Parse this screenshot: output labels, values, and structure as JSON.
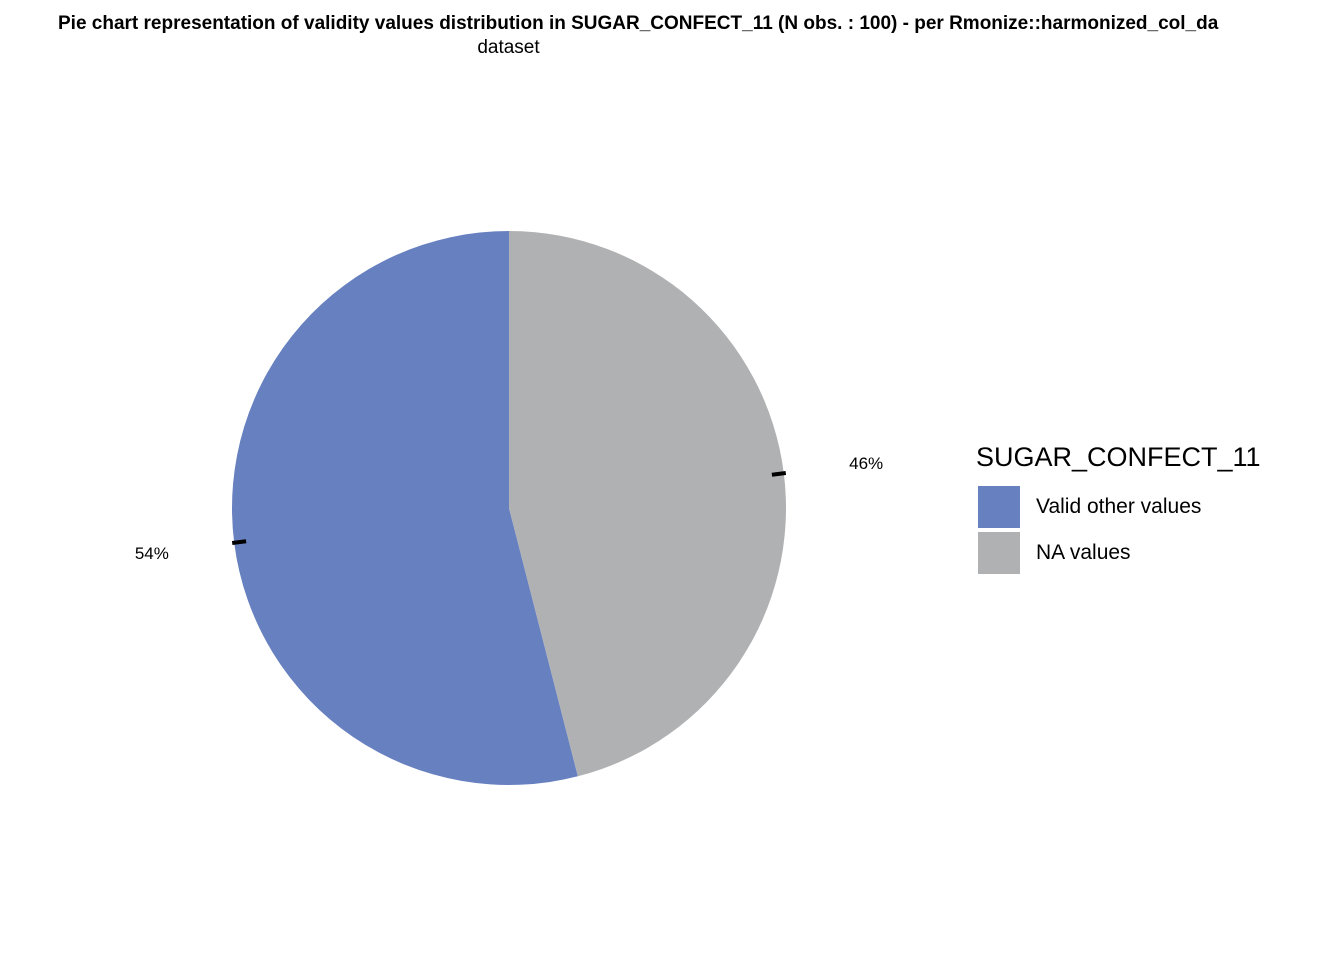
{
  "chart_data": {
    "type": "pie",
    "title": "Pie chart representation of validity values distribution in SUGAR_CONFECT_11 (N obs. : 100) - per Rmonize::harmonized_col_da",
    "subtitle": "dataset",
    "legend_title": "SUGAR_CONFECT_11",
    "legend_position": "right",
    "slices": [
      {
        "label": "Valid other values",
        "value": 54,
        "percent_label": "54%",
        "color": "#6780C0"
      },
      {
        "label": "NA values",
        "value": 46,
        "percent_label": "46%",
        "color": "#B0B1B3"
      }
    ]
  }
}
